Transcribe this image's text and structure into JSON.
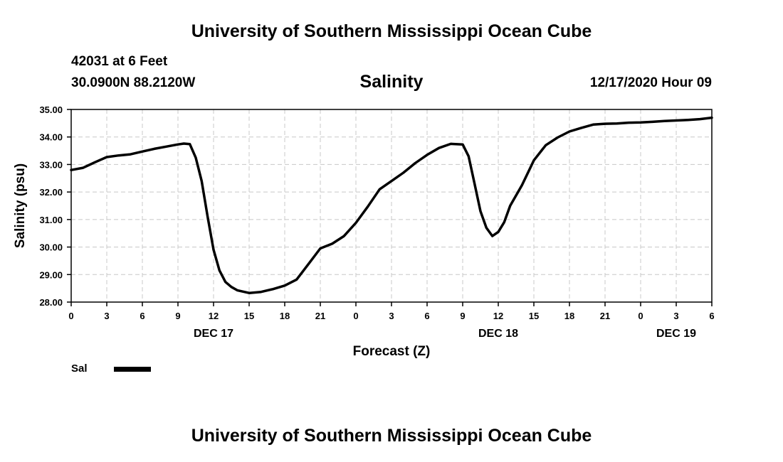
{
  "header": {
    "title": "University of Southern Mississippi Ocean Cube",
    "station": "42031 at 6 Feet",
    "coords": "30.0900N 88.2120W",
    "chart_title": "Salinity",
    "date": "12/17/2020 Hour 09"
  },
  "footer": {
    "title": "University of Southern Mississippi Ocean Cube"
  },
  "legend": {
    "label": "Sal",
    "color": "#000000"
  },
  "chart_data": {
    "type": "line",
    "title": "Salinity",
    "xlabel": "Forecast (Z)",
    "ylabel": "Salinity (psu)",
    "xlim": [
      0,
      54
    ],
    "ylim": [
      28.0,
      35.0
    ],
    "grid": true,
    "x_ticks": [
      0,
      3,
      6,
      9,
      12,
      15,
      18,
      21,
      24,
      27,
      30,
      33,
      36,
      39,
      42,
      45,
      48,
      51,
      54
    ],
    "x_tick_labels": [
      "0",
      "3",
      "6",
      "9",
      "12",
      "15",
      "18",
      "21",
      "0",
      "3",
      "6",
      "9",
      "12",
      "15",
      "18",
      "21",
      "0",
      "3",
      "6"
    ],
    "y_ticks": [
      28,
      29,
      30,
      31,
      32,
      33,
      34,
      35
    ],
    "y_tick_labels": [
      "28.00",
      "29.00",
      "30.00",
      "31.00",
      "32.00",
      "33.00",
      "34.00",
      "35.00"
    ],
    "day_labels": [
      {
        "x": 12,
        "label": "DEC 17"
      },
      {
        "x": 36,
        "label": "DEC 18"
      },
      {
        "x": 51,
        "label": "DEC 19"
      }
    ],
    "series": [
      {
        "name": "Sal",
        "color": "#000000",
        "x": [
          0,
          1,
          2,
          3,
          4,
          5,
          6,
          7,
          8,
          9,
          9.5,
          10,
          10.5,
          11,
          11.5,
          12,
          12.5,
          13,
          13.5,
          14,
          15,
          16,
          17,
          18,
          19,
          20,
          21,
          22,
          23,
          24,
          25,
          26,
          27,
          28,
          29,
          30,
          31,
          32,
          33,
          33.5,
          34,
          34.5,
          35,
          35.5,
          36,
          36.5,
          37,
          38,
          39,
          40,
          41,
          42,
          43,
          44,
          45,
          46,
          47,
          48,
          49,
          50,
          51,
          52,
          53,
          54
        ],
        "y": [
          32.8,
          32.88,
          33.08,
          33.27,
          33.33,
          33.37,
          33.47,
          33.57,
          33.65,
          33.73,
          33.76,
          33.74,
          33.25,
          32.4,
          31.1,
          29.9,
          29.15,
          28.73,
          28.55,
          28.43,
          28.33,
          28.37,
          28.47,
          28.6,
          28.82,
          29.38,
          29.95,
          30.12,
          30.4,
          30.88,
          31.47,
          32.1,
          32.4,
          32.7,
          33.05,
          33.35,
          33.6,
          33.75,
          33.73,
          33.3,
          32.3,
          31.3,
          30.7,
          30.4,
          30.55,
          30.9,
          31.5,
          32.25,
          33.15,
          33.7,
          33.98,
          34.2,
          34.33,
          34.45,
          34.48,
          34.49,
          34.52,
          34.53,
          34.55,
          34.58,
          34.6,
          34.62,
          34.65,
          34.7
        ]
      }
    ]
  }
}
